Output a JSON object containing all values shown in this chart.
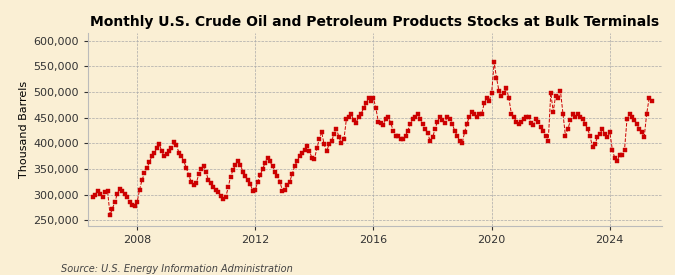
{
  "title": "Monthly U.S. Crude Oil and Petroleum Products Stocks at Bulk Terminals",
  "ylabel": "Thousand Barrels",
  "source": "Source: U.S. Energy Information Administration",
  "bg_color": "#faefd4",
  "line_color": "#cc0000",
  "marker": "s",
  "markersize": 2.8,
  "linewidth": 0.7,
  "linestyle": "--",
  "ylim": [
    240000,
    615000
  ],
  "yticks": [
    250000,
    300000,
    350000,
    400000,
    450000,
    500000,
    550000,
    600000
  ],
  "ytick_labels": [
    "250,000",
    "300,000",
    "350,000",
    "400,000",
    "450,000",
    "500,000",
    "550,000",
    "600,000"
  ],
  "grid_color": "#aaaaaa",
  "grid_linestyle": "--",
  "grid_linewidth": 0.5,
  "title_fontsize": 10,
  "axis_fontsize": 8,
  "source_fontsize": 7,
  "start_year": 2006,
  "start_month": 7,
  "values": [
    295000,
    300000,
    308000,
    302000,
    295000,
    305000,
    307000,
    260000,
    273000,
    285000,
    302000,
    312000,
    308000,
    302000,
    295000,
    285000,
    280000,
    278000,
    285000,
    310000,
    328000,
    342000,
    352000,
    363000,
    375000,
    382000,
    390000,
    398000,
    385000,
    375000,
    380000,
    385000,
    390000,
    402000,
    397000,
    382000,
    375000,
    365000,
    352000,
    338000,
    325000,
    318000,
    322000,
    340000,
    350000,
    356000,
    345000,
    328000,
    322000,
    315000,
    310000,
    305000,
    298000,
    292000,
    295000,
    315000,
    335000,
    348000,
    358000,
    365000,
    358000,
    345000,
    336000,
    328000,
    320000,
    308000,
    310000,
    325000,
    338000,
    350000,
    362000,
    372000,
    365000,
    355000,
    345000,
    336000,
    325000,
    308000,
    310000,
    318000,
    325000,
    340000,
    355000,
    365000,
    375000,
    382000,
    388000,
    395000,
    385000,
    372000,
    370000,
    390000,
    408000,
    422000,
    398000,
    385000,
    398000,
    405000,
    418000,
    428000,
    412000,
    400000,
    408000,
    448000,
    452000,
    458000,
    445000,
    440000,
    452000,
    458000,
    468000,
    478000,
    488000,
    482000,
    488000,
    468000,
    442000,
    440000,
    435000,
    448000,
    452000,
    440000,
    425000,
    415000,
    415000,
    408000,
    408000,
    415000,
    425000,
    438000,
    448000,
    452000,
    458000,
    448000,
    438000,
    428000,
    420000,
    405000,
    412000,
    428000,
    442000,
    452000,
    445000,
    440000,
    452000,
    448000,
    438000,
    425000,
    415000,
    405000,
    400000,
    422000,
    438000,
    452000,
    462000,
    458000,
    452000,
    458000,
    458000,
    478000,
    488000,
    482000,
    498000,
    558000,
    528000,
    502000,
    492000,
    498000,
    508000,
    488000,
    458000,
    452000,
    442000,
    438000,
    442000,
    448000,
    452000,
    452000,
    440000,
    435000,
    448000,
    442000,
    432000,
    425000,
    415000,
    405000,
    498000,
    462000,
    492000,
    488000,
    502000,
    458000,
    415000,
    428000,
    445000,
    458000,
    452000,
    458000,
    452000,
    448000,
    438000,
    428000,
    415000,
    392000,
    398000,
    412000,
    418000,
    428000,
    418000,
    412000,
    422000,
    388000,
    372000,
    365000,
    378000,
    378000,
    388000,
    448000,
    458000,
    452000,
    445000,
    438000,
    428000,
    422000,
    412000,
    458000,
    488000,
    482000
  ]
}
